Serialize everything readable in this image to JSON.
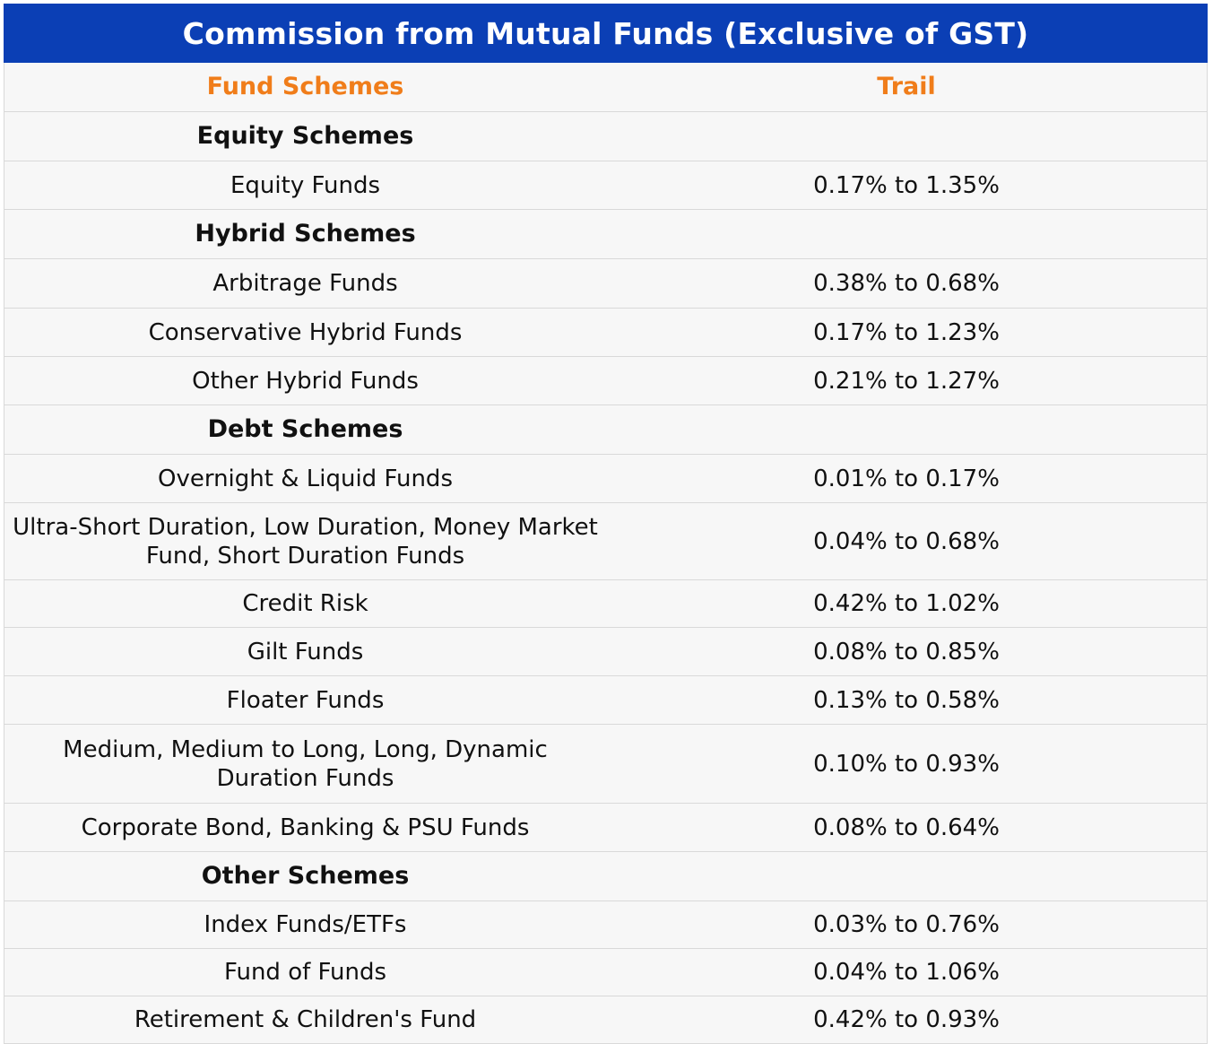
{
  "title": "Commission from Mutual Funds (Exclusive of GST)",
  "columns": {
    "scheme": "Fund Schemes",
    "trail": "Trail"
  },
  "rows": [
    {
      "scheme": "Equity Schemes",
      "trail": "",
      "group": true
    },
    {
      "scheme": "Equity Funds",
      "trail": "0.17% to 1.35%"
    },
    {
      "scheme": "Hybrid Schemes",
      "trail": "",
      "group": true
    },
    {
      "scheme": "Arbitrage Funds",
      "trail": "0.38% to 0.68%"
    },
    {
      "scheme": "Conservative Hybrid Funds",
      "trail": "0.17% to 1.23%"
    },
    {
      "scheme": "Other Hybrid Funds",
      "trail": "0.21% to 1.27%"
    },
    {
      "scheme": "Debt Schemes",
      "trail": "",
      "group": true
    },
    {
      "scheme": "Overnight & Liquid Funds",
      "trail": "0.01% to 0.17%"
    },
    {
      "scheme": "Ultra-Short Duration, Low Duration, Money Market Fund, Short Duration Funds",
      "trail": "0.04% to 0.68%"
    },
    {
      "scheme": "Credit Risk",
      "trail": "0.42% to 1.02%"
    },
    {
      "scheme": "Gilt Funds",
      "trail": "0.08% to 0.85%"
    },
    {
      "scheme": "Floater Funds",
      "trail": "0.13% to 0.58%"
    },
    {
      "scheme": "Medium, Medium to Long, Long, Dynamic Duration Funds",
      "trail": "0.10% to 0.93%"
    },
    {
      "scheme": "Corporate Bond, Banking & PSU Funds",
      "trail": "0.08% to 0.64%"
    },
    {
      "scheme": "Other Schemes",
      "trail": "",
      "group": true
    },
    {
      "scheme": "Index Funds/ETFs",
      "trail": "0.03% to 0.76%"
    },
    {
      "scheme": "Fund of Funds",
      "trail": "0.04% to 1.06%"
    },
    {
      "scheme": "Retirement & Children's Fund",
      "trail": "0.42% to 0.93%"
    }
  ],
  "colors": {
    "title_bg": "#0b3fb5",
    "header_text": "#f07d1a",
    "row_bg": "#f7f7f7"
  }
}
